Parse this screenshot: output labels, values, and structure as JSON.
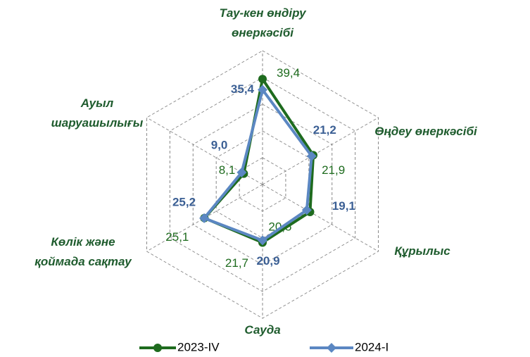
{
  "chart_data": {
    "type": "radar",
    "categories": [
      "Тау-кен өндіру\nөнеркәсібі",
      "Өңдеу өнеркәсібі",
      "Құрылыс",
      "Сауда",
      "Көлік және\nқоймада сақтау",
      "Ауыл\nшаруашылығы"
    ],
    "series": [
      {
        "name": "2023-IV",
        "color": "#1e6b1e",
        "values": [
          39.4,
          21.9,
          20.5,
          21.7,
          25.1,
          8.1
        ],
        "value_labels": [
          "39,4",
          "21,9",
          "20,5",
          "21,7",
          "25,1",
          "8,1"
        ]
      },
      {
        "name": "2024-I",
        "color": "#5b87c2",
        "values": [
          35.4,
          21.2,
          19.1,
          20.9,
          25.2,
          9.0
        ],
        "value_labels": [
          "35,4",
          "21,2",
          "19,1",
          "20,9",
          "25,2",
          "9,0"
        ]
      }
    ],
    "ylim": [
      0,
      50
    ],
    "yticks": [
      0,
      10,
      20,
      30,
      40,
      50
    ],
    "grid": true
  }
}
